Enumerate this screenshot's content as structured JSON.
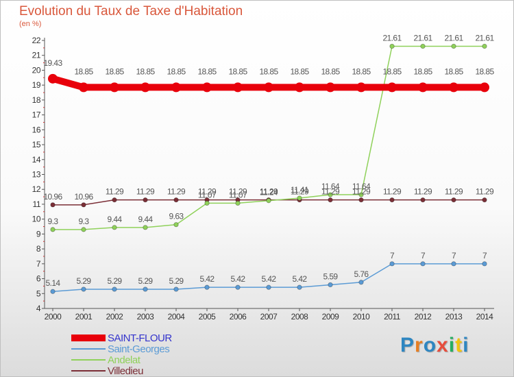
{
  "chart_data": {
    "type": "line",
    "title": "Evolution du Taux de Taxe d'Habitation",
    "unit_label": "(en %)",
    "x": [
      "2000",
      "2001",
      "2002",
      "2003",
      "2004",
      "2005",
      "2006",
      "2007",
      "2008",
      "2009",
      "2010",
      "2011",
      "2012",
      "2013",
      "2014"
    ],
    "ylim": [
      4,
      22
    ],
    "yticks": [
      4,
      5,
      6,
      7,
      8,
      9,
      10,
      11,
      12,
      13,
      14,
      15,
      16,
      17,
      18,
      19,
      20,
      21,
      22
    ],
    "grid": false,
    "legend_position": "bottom-left",
    "series": [
      {
        "name": "SAINT-FLOUR",
        "color": "#e8000b",
        "values": [
          19.43,
          18.85,
          18.85,
          18.85,
          18.85,
          18.85,
          18.85,
          18.85,
          18.85,
          18.85,
          18.85,
          18.85,
          18.85,
          18.85,
          18.85
        ],
        "labels": [
          "19.43",
          "18.85",
          "18.85",
          "18.85",
          "18.85",
          "18.85",
          "18.85",
          "18.85",
          "18.85",
          "18.85",
          "18.85",
          "18.85",
          "18.85",
          "18.85",
          "18.85"
        ]
      },
      {
        "name": "Saint-Georges",
        "color": "#5b9bd5",
        "values": [
          5.14,
          5.29,
          5.29,
          5.29,
          5.29,
          5.42,
          5.42,
          5.42,
          5.42,
          5.59,
          5.76,
          7,
          7,
          7,
          7
        ],
        "labels": [
          "5.14",
          "5.29",
          "5.29",
          "5.29",
          "5.29",
          "5.42",
          "5.42",
          "5.42",
          "5.42",
          "5.59",
          "5.76",
          "7",
          "7",
          "7",
          "7"
        ]
      },
      {
        "name": "Andelat",
        "color": "#8fd15a",
        "values": [
          9.3,
          9.3,
          9.44,
          9.44,
          9.63,
          11.07,
          11.07,
          11.24,
          11.41,
          11.64,
          11.64,
          21.61,
          21.61,
          21.61,
          21.61
        ],
        "labels": [
          "9.3",
          "9.3",
          "9.44",
          "9.44",
          "9.63",
          "11.07",
          "11.07",
          "11.24",
          "11.41",
          "11.64",
          "11.64",
          "21.61",
          "21.61",
          "21.61",
          "21.61"
        ]
      },
      {
        "name": "Villedieu",
        "color": "#7b2e36",
        "values": [
          10.96,
          10.96,
          11.29,
          11.29,
          11.29,
          11.29,
          11.29,
          11.29,
          11.29,
          11.29,
          11.29,
          11.29,
          11.29,
          11.29,
          11.29
        ],
        "labels": [
          "10.96",
          "10.96",
          "11.29",
          "11.29",
          "11.29",
          "11.29",
          "11.29",
          "11.29",
          "11.29",
          "11.29",
          "11.29",
          "11.29",
          "11.29",
          "11.29",
          "11.29"
        ]
      }
    ]
  },
  "legend": {
    "items": [
      {
        "label": "SAINT-FLOUR",
        "color": "#e8000b",
        "thickness": 10
      },
      {
        "label": "Saint-Georges",
        "color": "#5b9bd5",
        "thickness": 2
      },
      {
        "label": "Andelat",
        "color": "#8fd15a",
        "thickness": 2
      },
      {
        "label": "Villedieu",
        "color": "#7b2e36",
        "thickness": 2
      }
    ]
  },
  "logo": {
    "letters": [
      {
        "ch": "P",
        "color": "#2e86c1"
      },
      {
        "ch": "r",
        "color": "#e67e22"
      },
      {
        "ch": "o",
        "color": "#2e86c1"
      },
      {
        "ch": "x",
        "color": "#e74c3c"
      },
      {
        "ch": "i",
        "color": "#27ae60"
      },
      {
        "ch": "t",
        "color": "#f1c40f"
      },
      {
        "ch": "i",
        "color": "#2e86c1"
      }
    ]
  }
}
